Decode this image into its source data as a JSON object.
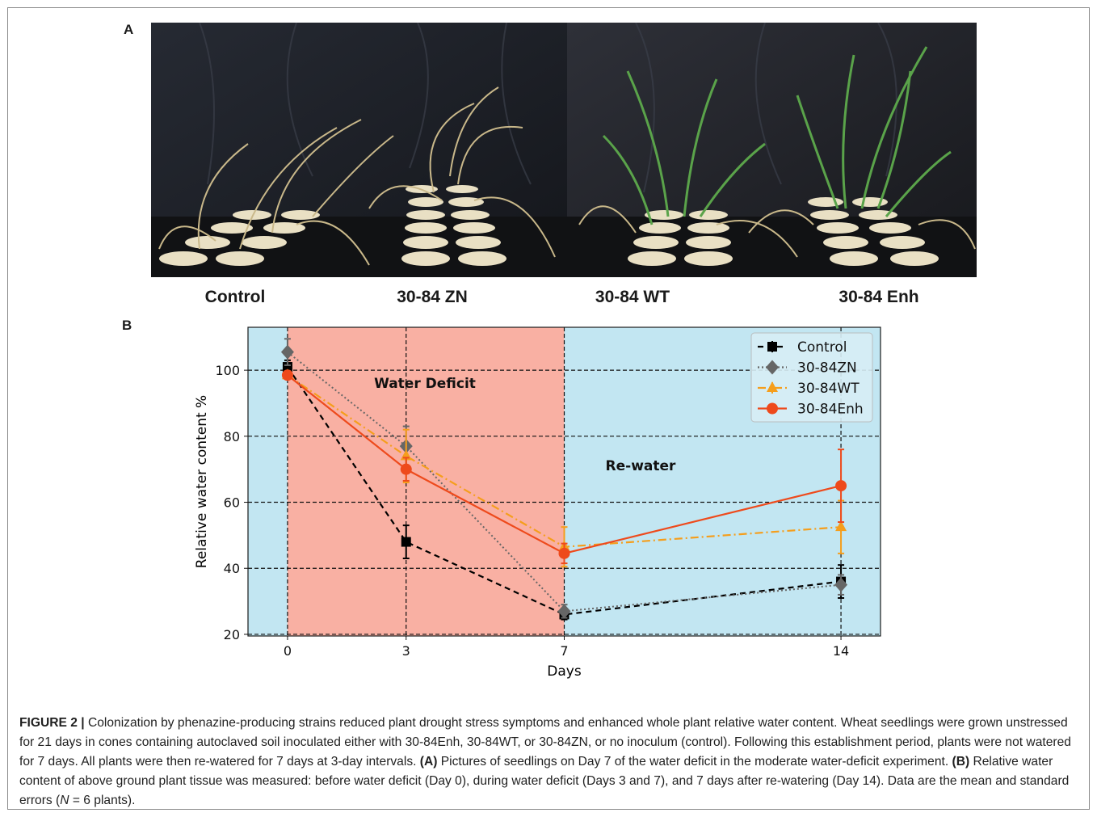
{
  "panel_a": {
    "letter": "A",
    "labels": [
      "Control",
      "30-84 ZN",
      "30-84 WT",
      "30-84 Enh"
    ]
  },
  "panel_b": {
    "letter": "B"
  },
  "chart_data": {
    "type": "line",
    "xlabel": "Days",
    "ylabel": "Relative water content %",
    "x": [
      0,
      3,
      7,
      14
    ],
    "xticks": [
      0,
      3,
      7,
      14
    ],
    "yticks": [
      20,
      40,
      60,
      80,
      100
    ],
    "xlim": [
      -1,
      15
    ],
    "ylim": [
      19.5,
      113
    ],
    "grid": true,
    "legend_position": "top-right",
    "regions": [
      {
        "label": "Water Deficit",
        "x_range": [
          0,
          7
        ],
        "color": "#f9b0a3"
      },
      {
        "label": "Re-water",
        "x_range": [
          7,
          15
        ],
        "color": "#c2e6f2"
      }
    ],
    "series": [
      {
        "name": "Control",
        "color": "#000000",
        "marker": "square",
        "style": "dashed",
        "values": [
          101,
          48,
          26,
          36
        ],
        "errors": [
          2,
          5,
          1.5,
          5
        ]
      },
      {
        "name": "30-84ZN",
        "color": "#666666",
        "marker": "diamond",
        "style": "dotted",
        "values": [
          105.5,
          77,
          27,
          35
        ],
        "errors": [
          4,
          6,
          2,
          3
        ]
      },
      {
        "name": "30-84WT",
        "color": "#f59e1c",
        "marker": "triangle",
        "style": "dashdot",
        "values": [
          98.5,
          74,
          46.5,
          52.5
        ],
        "errors": [
          1,
          8,
          6,
          8
        ]
      },
      {
        "name": "30-84Enh",
        "color": "#ee4a1c",
        "marker": "circle",
        "style": "solid",
        "values": [
          98.5,
          70,
          44.5,
          65
        ],
        "errors": [
          1,
          3.5,
          3,
          11
        ]
      }
    ]
  },
  "caption": {
    "figure_label": "FIGURE 2 |",
    "text_1": " Colonization by phenazine-producing strains reduced plant drought stress symptoms and enhanced whole plant relative water content. Wheat seedlings were grown unstressed for 21 days in cones containing autoclaved soil inoculated either with 30-84Enh, 30-84WT, or 30-84ZN, or no inoculum (control). Following this establishment period, plants were not watered for 7 days. All plants were then re-watered for 7 days at 3-day intervals. ",
    "label_a": "(A)",
    "text_2": " Pictures of seedlings on Day 7 of the water deficit in the moderate water-deficit experiment. ",
    "label_b": "(B)",
    "text_3": " Relative water content of above ground plant tissue was measured: before water deficit (Day 0), during water deficit (Days 3 and 7), and 7 days after re-watering (Day 14). Data are the mean and standard errors (",
    "n_symbol": "N",
    "text_4": " = 6 plants)."
  }
}
